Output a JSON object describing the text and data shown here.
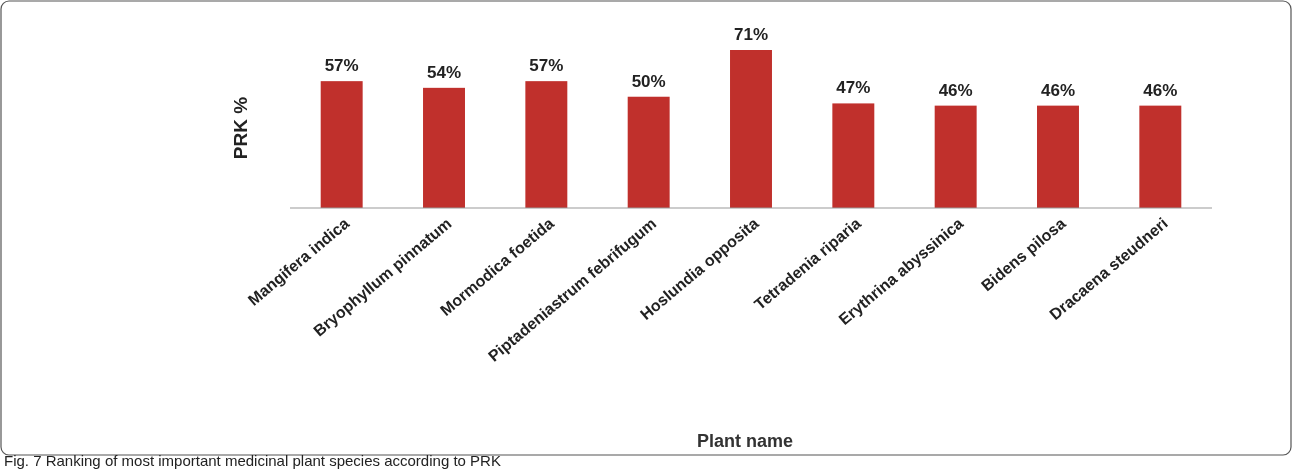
{
  "chart_data": {
    "type": "bar",
    "categories": [
      "Mangifera indica",
      "Bryophyllum pinnatum",
      "Mormodica foetida",
      "Piptadeniastrum febrifugum",
      "Hoslundia opposita",
      "Tetradenia riparia",
      "Erythrina abyssinica",
      "Bidens pilosa",
      "Dracaena steudneri"
    ],
    "values": [
      57,
      54,
      57,
      50,
      71,
      47,
      46,
      46,
      46
    ],
    "value_labels": [
      "57%",
      "54%",
      "57%",
      "50%",
      "71%",
      "47%",
      "46%",
      "46%",
      "46%"
    ],
    "color": "#c0302c",
    "xlabel": "Plant name",
    "ylabel": "PRK %",
    "annotations": [
      "Fig. 7 Ranking of most important medicinal plant species according to PRK"
    ]
  }
}
